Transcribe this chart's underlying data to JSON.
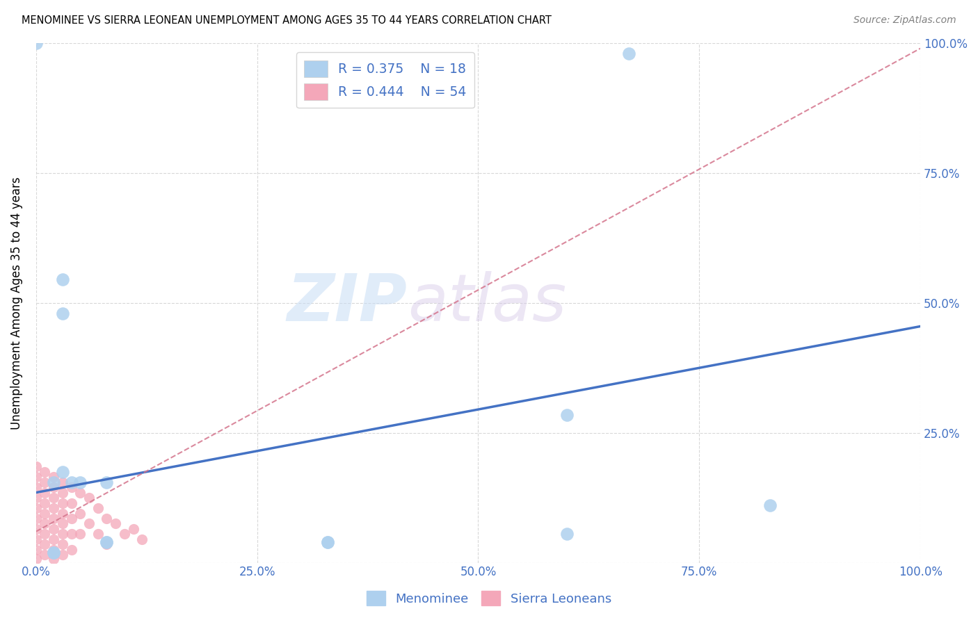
{
  "title": "MENOMINEE VS SIERRA LEONEAN UNEMPLOYMENT AMONG AGES 35 TO 44 YEARS CORRELATION CHART",
  "source": "Source: ZipAtlas.com",
  "ylabel": "Unemployment Among Ages 35 to 44 years",
  "xlim": [
    0,
    1
  ],
  "ylim": [
    0,
    1
  ],
  "xticks": [
    0.0,
    0.25,
    0.5,
    0.75,
    1.0
  ],
  "yticks": [
    0.0,
    0.25,
    0.5,
    0.75,
    1.0
  ],
  "xticklabels": [
    "0.0%",
    "25.0%",
    "50.0%",
    "75.0%",
    "100.0%"
  ],
  "yticklabels": [
    "",
    "25.0%",
    "50.0%",
    "75.0%",
    "100.0%"
  ],
  "watermark_zip": "ZIP",
  "watermark_atlas": "atlas",
  "legend_labels": [
    "Menominee",
    "Sierra Leoneans"
  ],
  "menominee_R": "0.375",
  "menominee_N": "18",
  "sierra_R": "0.444",
  "sierra_N": "54",
  "menominee_color": "#aed0ee",
  "sierra_color": "#f4a7b9",
  "menominee_line_color": "#4472c4",
  "sierra_line_color": "#d4748c",
  "menominee_scatter": [
    [
      0.0,
      1.0
    ],
    [
      0.03,
      0.545
    ],
    [
      0.03,
      0.48
    ],
    [
      0.03,
      0.175
    ],
    [
      0.67,
      0.98
    ],
    [
      0.6,
      0.285
    ],
    [
      0.83,
      0.11
    ],
    [
      0.6,
      0.055
    ],
    [
      0.04,
      0.155
    ],
    [
      0.05,
      0.155
    ],
    [
      0.08,
      0.155
    ],
    [
      0.08,
      0.04
    ],
    [
      0.08,
      0.04
    ],
    [
      0.33,
      0.04
    ],
    [
      0.33,
      0.04
    ],
    [
      0.02,
      0.155
    ],
    [
      0.02,
      0.02
    ],
    [
      0.02,
      0.02
    ]
  ],
  "sierra_scatter": [
    [
      0.0,
      0.185
    ],
    [
      0.0,
      0.165
    ],
    [
      0.0,
      0.145
    ],
    [
      0.0,
      0.125
    ],
    [
      0.0,
      0.105
    ],
    [
      0.0,
      0.085
    ],
    [
      0.0,
      0.065
    ],
    [
      0.0,
      0.045
    ],
    [
      0.0,
      0.025
    ],
    [
      0.0,
      0.008
    ],
    [
      0.01,
      0.175
    ],
    [
      0.01,
      0.155
    ],
    [
      0.01,
      0.135
    ],
    [
      0.01,
      0.115
    ],
    [
      0.01,
      0.095
    ],
    [
      0.01,
      0.075
    ],
    [
      0.01,
      0.055
    ],
    [
      0.01,
      0.035
    ],
    [
      0.01,
      0.015
    ],
    [
      0.02,
      0.165
    ],
    [
      0.02,
      0.145
    ],
    [
      0.02,
      0.125
    ],
    [
      0.02,
      0.105
    ],
    [
      0.02,
      0.085
    ],
    [
      0.02,
      0.065
    ],
    [
      0.02,
      0.045
    ],
    [
      0.02,
      0.025
    ],
    [
      0.02,
      0.008
    ],
    [
      0.03,
      0.155
    ],
    [
      0.03,
      0.135
    ],
    [
      0.03,
      0.115
    ],
    [
      0.03,
      0.095
    ],
    [
      0.03,
      0.075
    ],
    [
      0.03,
      0.055
    ],
    [
      0.03,
      0.035
    ],
    [
      0.03,
      0.015
    ],
    [
      0.04,
      0.145
    ],
    [
      0.04,
      0.115
    ],
    [
      0.04,
      0.085
    ],
    [
      0.04,
      0.055
    ],
    [
      0.04,
      0.025
    ],
    [
      0.05,
      0.135
    ],
    [
      0.05,
      0.095
    ],
    [
      0.05,
      0.055
    ],
    [
      0.06,
      0.125
    ],
    [
      0.06,
      0.075
    ],
    [
      0.07,
      0.105
    ],
    [
      0.07,
      0.055
    ],
    [
      0.08,
      0.085
    ],
    [
      0.08,
      0.035
    ],
    [
      0.09,
      0.075
    ],
    [
      0.1,
      0.055
    ],
    [
      0.11,
      0.065
    ],
    [
      0.12,
      0.045
    ]
  ],
  "menominee_line": [
    0.0,
    1.0,
    0.135,
    0.455
  ],
  "sierra_line": [
    0.0,
    1.0,
    0.06,
    0.99
  ],
  "background_color": "#ffffff",
  "grid_color": "#d8d8d8"
}
